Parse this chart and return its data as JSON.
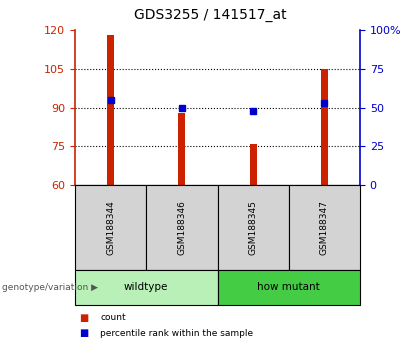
{
  "title": "GDS3255 / 141517_at",
  "samples": [
    "GSM188344",
    "GSM188346",
    "GSM188345",
    "GSM188347"
  ],
  "bar_values": [
    118,
    88,
    76,
    105
  ],
  "bar_bottom": 60,
  "percentile_values": [
    55,
    50,
    48,
    53
  ],
  "left_ylim": [
    60,
    120
  ],
  "left_yticks": [
    60,
    75,
    90,
    105,
    120
  ],
  "right_ylim": [
    0,
    100
  ],
  "right_yticks": [
    0,
    25,
    50,
    75,
    100
  ],
  "right_yticklabels": [
    "0",
    "25",
    "50",
    "75",
    "100%"
  ],
  "bar_color": "#cc2200",
  "dot_color": "#0000cc",
  "left_tick_color": "#cc2200",
  "right_tick_color": "#0000cc",
  "groups": [
    {
      "label": "wildtype",
      "indices": [
        0,
        1
      ],
      "color": "#b8f0b8"
    },
    {
      "label": "how mutant",
      "indices": [
        2,
        3
      ],
      "color": "#44cc44"
    }
  ],
  "group_label": "genotype/variation",
  "legend": [
    {
      "label": "count",
      "color": "#cc2200"
    },
    {
      "label": "percentile rank within the sample",
      "color": "#0000cc"
    }
  ],
  "sample_box_color": "#d3d3d3",
  "fig_bg_color": "#ffffff"
}
